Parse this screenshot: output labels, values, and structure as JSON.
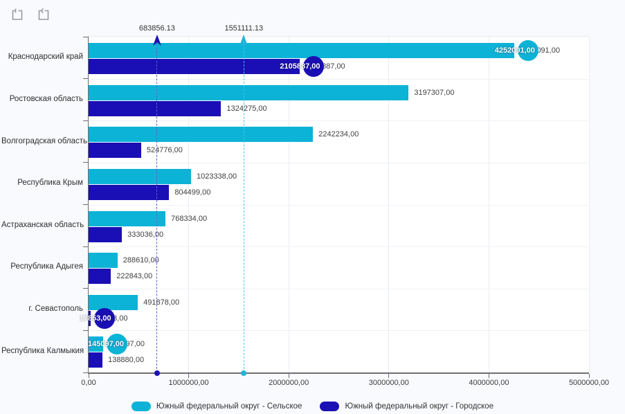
{
  "toolbar": {
    "icons": [
      {
        "name": "zoom-selection-reset"
      },
      {
        "name": "undo-zoom"
      }
    ]
  },
  "chart_data": {
    "type": "bar",
    "orientation": "horizontal",
    "title": "",
    "xlabel": "",
    "ylabel": "",
    "grid": true,
    "legend_position": "bottom",
    "categories": [
      "Краснодарский край",
      "Ростовская область",
      "Волгоградская область",
      "Республика Крым",
      "Астраханская область",
      "Республика Адыгея",
      "г. Севастополь",
      "Республика Калмыкия"
    ],
    "series": [
      {
        "name": "Южный федеральный округ - Сельское",
        "color": "#0db3d6",
        "values": [
          4252091,
          3197307,
          2242234,
          1023338,
          768334,
          288610,
          491878,
          145097
        ],
        "labels": [
          "4252091,00",
          "3197307,00",
          "2242234,00",
          "1023338,00",
          "768334,00",
          "288610,00",
          "491878,00",
          "145097,00"
        ]
      },
      {
        "name": "Южный федеральный округ - Городское",
        "color": "#1a0fb4",
        "values": [
          2105887,
          1324275,
          524776,
          804499,
          333036,
          222843,
          17853,
          138880
        ],
        "labels": [
          "2105887,00",
          "1324275,00",
          "524776,00",
          "804499,00",
          "333036,00",
          "222843,00",
          "17853,00",
          "138880,00"
        ]
      }
    ],
    "point_markers": [
      {
        "series": 0,
        "category": 0,
        "label": "4252091,00",
        "note": "max of series"
      },
      {
        "series": 1,
        "category": 0,
        "label": "2105887,00",
        "note": "max of series"
      },
      {
        "series": 1,
        "category": 6,
        "label": "17853,00",
        "note": "min of series"
      },
      {
        "series": 0,
        "category": 7,
        "label": "145097,00",
        "note": "min of series"
      }
    ],
    "constant_lines": [
      {
        "value": 683856.13,
        "label": "683856.13",
        "line_color": "#5c63c9",
        "marker_color": "#1a0fb4"
      },
      {
        "value": 1551111.13,
        "label": "1551111.13",
        "line_color": "#41c6e6",
        "marker_color": "#23b4d8"
      }
    ],
    "x_axis": {
      "min": 0,
      "max": 5000000,
      "tick_interval": 1000000,
      "tick_labels": [
        "0,00",
        "1000000,00",
        "2000000,00",
        "3000000,00",
        "4000000,00",
        "5000000,00"
      ]
    },
    "legend": [
      {
        "label": "Южный федеральный округ - Сельское",
        "color": "#0db3d6"
      },
      {
        "label": "Южный федеральный округ - Городское",
        "color": "#1a0fb4"
      }
    ]
  }
}
